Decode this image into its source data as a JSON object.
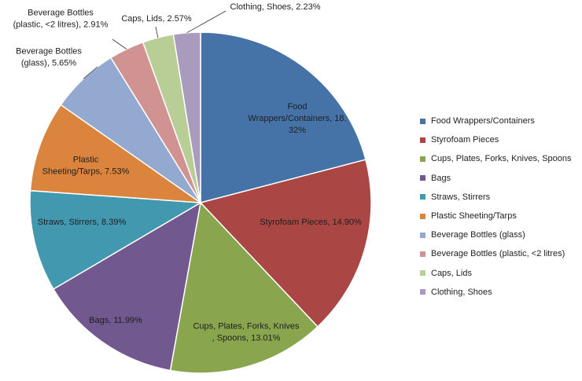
{
  "chart_data": {
    "type": "pie",
    "title": "",
    "start_angle_deg": 0,
    "direction": "clockwise",
    "slices": [
      {
        "name": "Food Wrappers/Containers",
        "value": 18.32,
        "color": "#4572A7",
        "label_lines": [
          "Food",
          "Wrappers/Containers, 18.",
          "32%"
        ],
        "label_placement": "inside"
      },
      {
        "name": "Styrofoam Pieces",
        "value": 14.9,
        "color": "#AA4643",
        "label_lines": [
          "Styrofoam Pieces, 14.90%"
        ],
        "label_placement": "inside"
      },
      {
        "name": "Cups, Plates, Forks, Knives, Spoons",
        "value": 13.01,
        "color": "#89A54E",
        "label_lines": [
          "Cups, Plates, Forks, Knives",
          ", Spoons, 13.01%"
        ],
        "label_placement": "inside"
      },
      {
        "name": "Bags",
        "value": 11.99,
        "color": "#71588F",
        "label_lines": [
          "Bags, 11.99%"
        ],
        "label_placement": "inside"
      },
      {
        "name": "Straws, Stirrers",
        "value": 8.39,
        "color": "#4198AF",
        "label_lines": [
          "Straws, Stirrers, 8.39%"
        ],
        "label_placement": "inside"
      },
      {
        "name": "Plastic Sheeting/Tarps",
        "value": 7.53,
        "color": "#DB843D",
        "label_lines": [
          "Plastic",
          "Sheeting/Tarps, 7.53%"
        ],
        "label_placement": "inside"
      },
      {
        "name": "Beverage Bottles (glass)",
        "value": 5.65,
        "color": "#93A9CF",
        "label_lines": [
          "Beverage Bottles",
          "(glass), 5.65%"
        ],
        "label_placement": "outside"
      },
      {
        "name": "Beverage Bottles (plastic, <2 litres)",
        "value": 2.91,
        "color": "#D19392",
        "label_lines": [
          "Beverage Bottles",
          "(plastic, <2 litres), 2.91%"
        ],
        "label_placement": "outside"
      },
      {
        "name": "Caps, Lids",
        "value": 2.57,
        "color": "#B9CD96",
        "label_lines": [
          "Caps, Lids, 2.57%"
        ],
        "label_placement": "outside"
      },
      {
        "name": "Clothing, Shoes",
        "value": 2.23,
        "color": "#A99BBD",
        "label_lines": [
          "Clothing, Shoes, 2.23%"
        ],
        "label_placement": "outside"
      }
    ],
    "legend": {
      "placement": "right",
      "entries": [
        "Food Wrappers/Containers",
        "Styrofoam Pieces",
        "Cups, Plates, Forks, Knives, Spoons",
        "Bags",
        "Straws, Stirrers",
        "Plastic Sheeting/Tarps",
        "Beverage Bottles (glass)",
        "Beverage Bottles (plastic, <2 litres)",
        "Caps, Lids",
        "Clothing, Shoes"
      ]
    }
  }
}
